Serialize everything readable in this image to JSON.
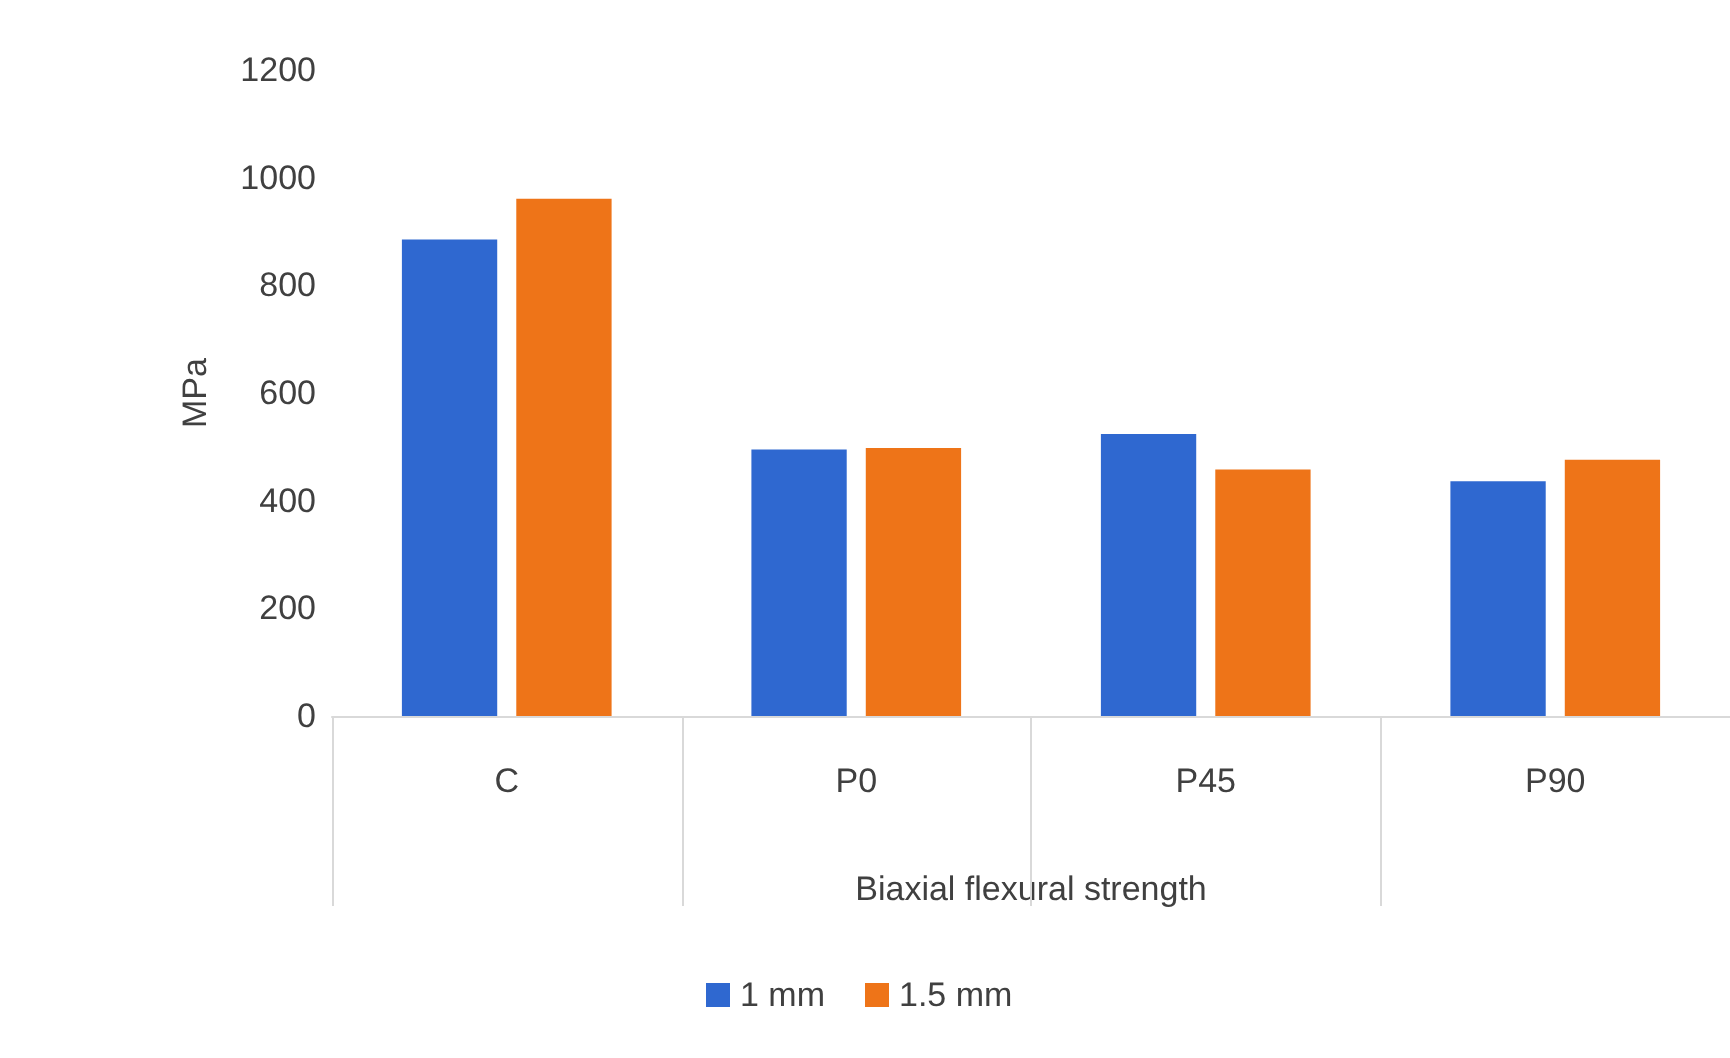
{
  "chart_data": {
    "type": "bar",
    "xlabel": "Biaxial flexural strength",
    "ylabel": "MPa",
    "categories": [
      "C",
      "P0",
      "P45",
      "P90"
    ],
    "series": [
      {
        "name": "1 mm",
        "color": "#2f68d0",
        "values": [
          885,
          495,
          524,
          436
        ]
      },
      {
        "name": "1.5 mm",
        "color": "#ee7418",
        "values": [
          961,
          498,
          458,
          476
        ]
      }
    ],
    "ylim": [
      0,
      1200
    ],
    "yticks": [
      0,
      200,
      400,
      600,
      800,
      1000,
      1200
    ],
    "grid": false,
    "legend": "bottom"
  }
}
